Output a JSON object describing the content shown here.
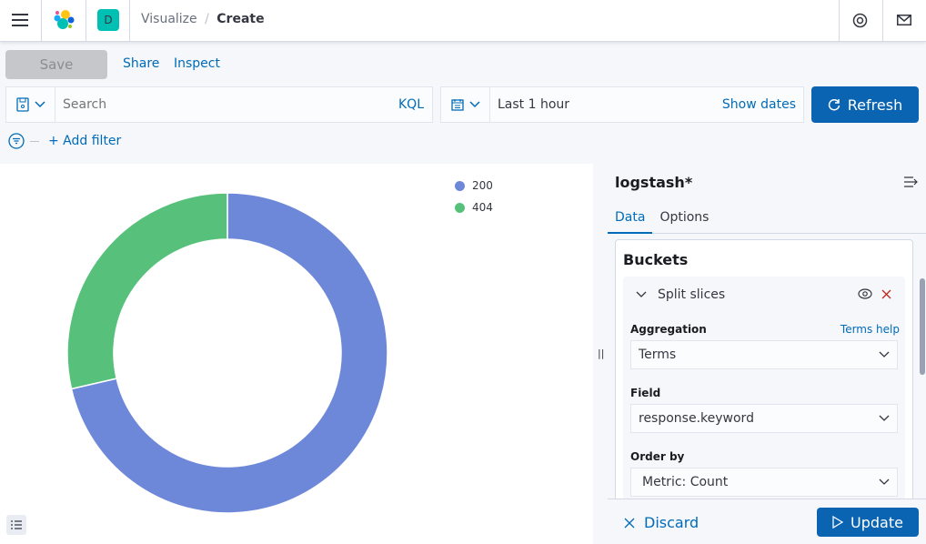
{
  "header": {
    "breadcrumb_parent": "Visualize",
    "breadcrumb_current": "Create",
    "space_initial": "D",
    "space_color": "#00bfb3"
  },
  "toolbar": {
    "save_label": "Save",
    "share_label": "Share",
    "inspect_label": "Inspect"
  },
  "query": {
    "search_placeholder": "Search",
    "language": "KQL",
    "time_range": "Last 1 hour",
    "show_dates_label": "Show dates",
    "refresh_label": "Refresh",
    "add_filter_label": "+ Add filter"
  },
  "chart_data": {
    "type": "pie",
    "donut": true,
    "categories": [
      "200",
      "404"
    ],
    "values": [
      71.4,
      28.6
    ],
    "value_units": "percent of total (estimated)",
    "colors": [
      "#6e88d9",
      "#57c17b"
    ],
    "legend": "top-right"
  },
  "legend": {
    "items": [
      {
        "label": "200",
        "color": "#6e88d9"
      },
      {
        "label": "404",
        "color": "#57c17b"
      }
    ]
  },
  "sidebar": {
    "index_pattern": "logstash*",
    "tabs": [
      {
        "label": "Data",
        "active": true
      },
      {
        "label": "Options",
        "active": false
      }
    ],
    "buckets_title": "Buckets",
    "bucket_type": "Split slices",
    "aggregation_label": "Aggregation",
    "aggregation_help": "Terms help",
    "aggregation_value": "Terms",
    "field_label": "Field",
    "field_value": "response.keyword",
    "order_by_label": "Order by",
    "order_by_value": "Metric: Count",
    "discard_label": "Discard",
    "update_label": "Update"
  }
}
